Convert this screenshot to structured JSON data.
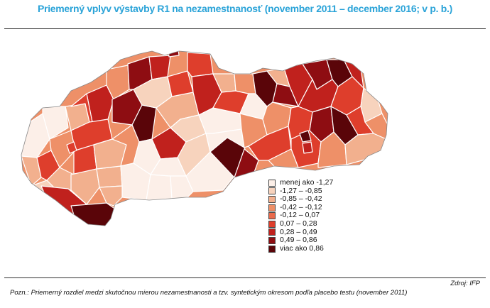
{
  "title": "Priemerný vplyv výstavby R1 na nezamestnanosť (november 2011 – december 2016; v p. b.)",
  "legend": [
    {
      "label": "menej ako -1,27",
      "color": "#fcefe8"
    },
    {
      "label": "-1,27  –  -0,85",
      "color": "#f7d3bd"
    },
    {
      "label": "-0,85  –  -0,42",
      "color": "#f2b08e"
    },
    {
      "label": "-0,42  –  -0,12",
      "color": "#ee9068"
    },
    {
      "label": "-0,12  –  0,07",
      "color": "#e96a4c"
    },
    {
      "label": "0,07  –  0,28",
      "color": "#de3e2c"
    },
    {
      "label": "0,28  –  0,49",
      "color": "#c0211d"
    },
    {
      "label": "0,49  –  0,86",
      "color": "#8e0d12"
    },
    {
      "label": "viac ako 0,86",
      "color": "#5a0509"
    }
  ],
  "source": "Zdroj: IFP",
  "note": "Pozn.: Priemerný rozdiel medzi skutočnou mierou nezamestnanosti a tzv. syntetickým okresom podľa placebo testu (november 2011)"
}
